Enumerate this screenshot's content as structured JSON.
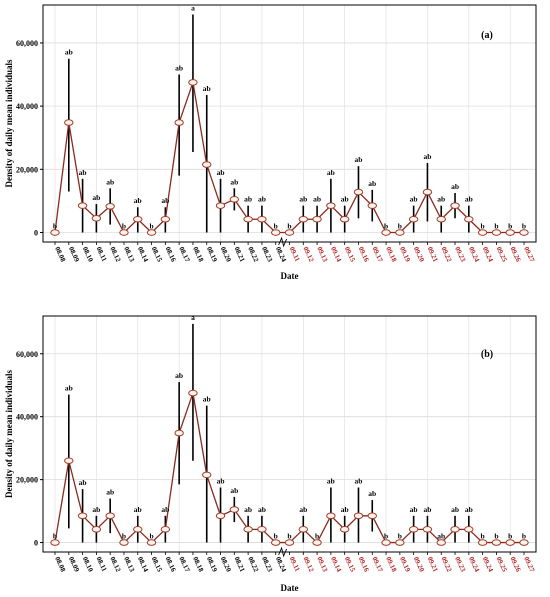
{
  "colors": {
    "line": "#8b2a1e",
    "marker_fill": "#fff3ea",
    "marker_stroke": "#9b3a2a",
    "error_bar": "#000000",
    "grid": "#dcdcdc",
    "august_tick": "#000000",
    "september_tick": "#b22222"
  },
  "chart_data": [
    {
      "type": "line",
      "panel_label": "(a)",
      "xlabel": "Date",
      "ylabel": "Density of daily mean individuals",
      "ylim": [
        -3000,
        72000
      ],
      "yticks": [
        0,
        20000,
        40000,
        60000
      ],
      "ytick_labels": [
        "0",
        "20,000",
        "40,000",
        "60,000"
      ],
      "grid": true,
      "categories": [
        "08.08",
        "08.09",
        "08.10",
        "08.11",
        "08.12",
        "08.13",
        "08.14",
        "08.15",
        "08.16",
        "08.17",
        "08.18",
        "08.19",
        "08.20",
        "08.21",
        "08.22",
        "08.23",
        "08.24",
        "09.11",
        "09.12",
        "09.13",
        "09.14",
        "09.15",
        "09.16",
        "09.17",
        "09.18",
        "09.19",
        "09.20",
        "09.21",
        "09.22",
        "09.23",
        "09.24",
        "09.24",
        "09.25",
        "09.26",
        "09.27"
      ],
      "values": [
        0,
        34800,
        8500,
        4500,
        8300,
        0,
        4200,
        0,
        4200,
        34800,
        47500,
        21500,
        8500,
        10500,
        4200,
        4200,
        0,
        0,
        4200,
        4200,
        8500,
        4200,
        12800,
        8500,
        0,
        0,
        4200,
        12800,
        4200,
        8500,
        4200,
        0,
        0,
        0,
        0
      ],
      "error_upper": [
        0,
        55000,
        17000,
        9000,
        14000,
        0,
        8000,
        0,
        8000,
        50000,
        69000,
        43500,
        17000,
        14000,
        8500,
        8500,
        0,
        0,
        8500,
        8500,
        17000,
        8500,
        21000,
        13500,
        0,
        0,
        8500,
        22000,
        8500,
        12500,
        8500,
        0,
        0,
        0,
        0
      ],
      "error_lower": [
        0,
        13000,
        0,
        0,
        2500,
        0,
        0,
        0,
        0,
        18000,
        25500,
        0,
        0,
        7000,
        0,
        0,
        0,
        0,
        0,
        0,
        0,
        0,
        4500,
        3500,
        0,
        0,
        0,
        3500,
        0,
        4500,
        0,
        0,
        0,
        0,
        0
      ],
      "annotations": [
        "b",
        "ab",
        "ab",
        "ab",
        "ab",
        "b",
        "ab",
        "b",
        "ab",
        "ab",
        "a",
        "ab",
        "ab",
        "ab",
        "ab",
        "ab",
        "b",
        "b",
        "ab",
        "ab",
        "ab",
        "ab",
        "ab",
        "ab",
        "b",
        "b",
        "ab",
        "ab",
        "ab",
        "ab",
        "ab",
        "b",
        "b",
        "b",
        "b"
      ],
      "month_split_index": 17
    },
    {
      "type": "line",
      "panel_label": "(b)",
      "xlabel": "Date",
      "ylabel": "Density of daily mean individuals",
      "ylim": [
        -3000,
        72000
      ],
      "yticks": [
        0,
        20000,
        40000,
        60000
      ],
      "ytick_labels": [
        "0",
        "20,000",
        "40,000",
        "60,000"
      ],
      "grid": true,
      "categories": [
        "08.08",
        "08.09",
        "08.10",
        "08.11",
        "08.12",
        "08.13",
        "08.14",
        "08.15",
        "08.16",
        "08.17",
        "08.18",
        "08.19",
        "08.20",
        "08.21",
        "08.22",
        "08.23",
        "08.24",
        "09.11",
        "09.12",
        "09.13",
        "09.14",
        "09.15",
        "09.16",
        "09.17",
        "09.18",
        "09.19",
        "09.20",
        "09.21",
        "09.22",
        "09.23",
        "09.24",
        "09.24",
        "09.25",
        "09.26",
        "09.27"
      ],
      "values": [
        0,
        26000,
        8500,
        4200,
        8500,
        0,
        4200,
        0,
        4200,
        34800,
        47500,
        21500,
        8500,
        10500,
        4200,
        4200,
        0,
        0,
        4200,
        0,
        8500,
        4200,
        8500,
        8500,
        0,
        0,
        4200,
        4200,
        0,
        4200,
        4200,
        0,
        0,
        0,
        0
      ],
      "error_upper": [
        0,
        47000,
        17000,
        8500,
        14000,
        0,
        8500,
        0,
        8500,
        51000,
        69500,
        43500,
        17500,
        14500,
        8500,
        8500,
        0,
        0,
        8500,
        0,
        17500,
        8500,
        17500,
        13500,
        0,
        0,
        8500,
        8500,
        0,
        8500,
        8500,
        0,
        0,
        0,
        0
      ],
      "error_lower": [
        0,
        4500,
        0,
        0,
        3000,
        0,
        0,
        0,
        0,
        18500,
        26000,
        0,
        0,
        6500,
        0,
        0,
        0,
        0,
        0,
        0,
        0,
        0,
        0,
        3500,
        0,
        0,
        0,
        0,
        0,
        0,
        0,
        0,
        0,
        0,
        0
      ],
      "annotations": [
        "b",
        "ab",
        "ab",
        "ab",
        "ab",
        "b",
        "ab",
        "b",
        "ab",
        "ab",
        "a",
        "ab",
        "ab",
        "ab",
        "ab",
        "ab",
        "b",
        "b",
        "ab",
        "b",
        "ab",
        "ab",
        "ab",
        "ab",
        "b",
        "b",
        "ab",
        "ab",
        "ab",
        "ab",
        "ab",
        "b",
        "b",
        "b",
        "b"
      ],
      "month_split_index": 17
    }
  ]
}
